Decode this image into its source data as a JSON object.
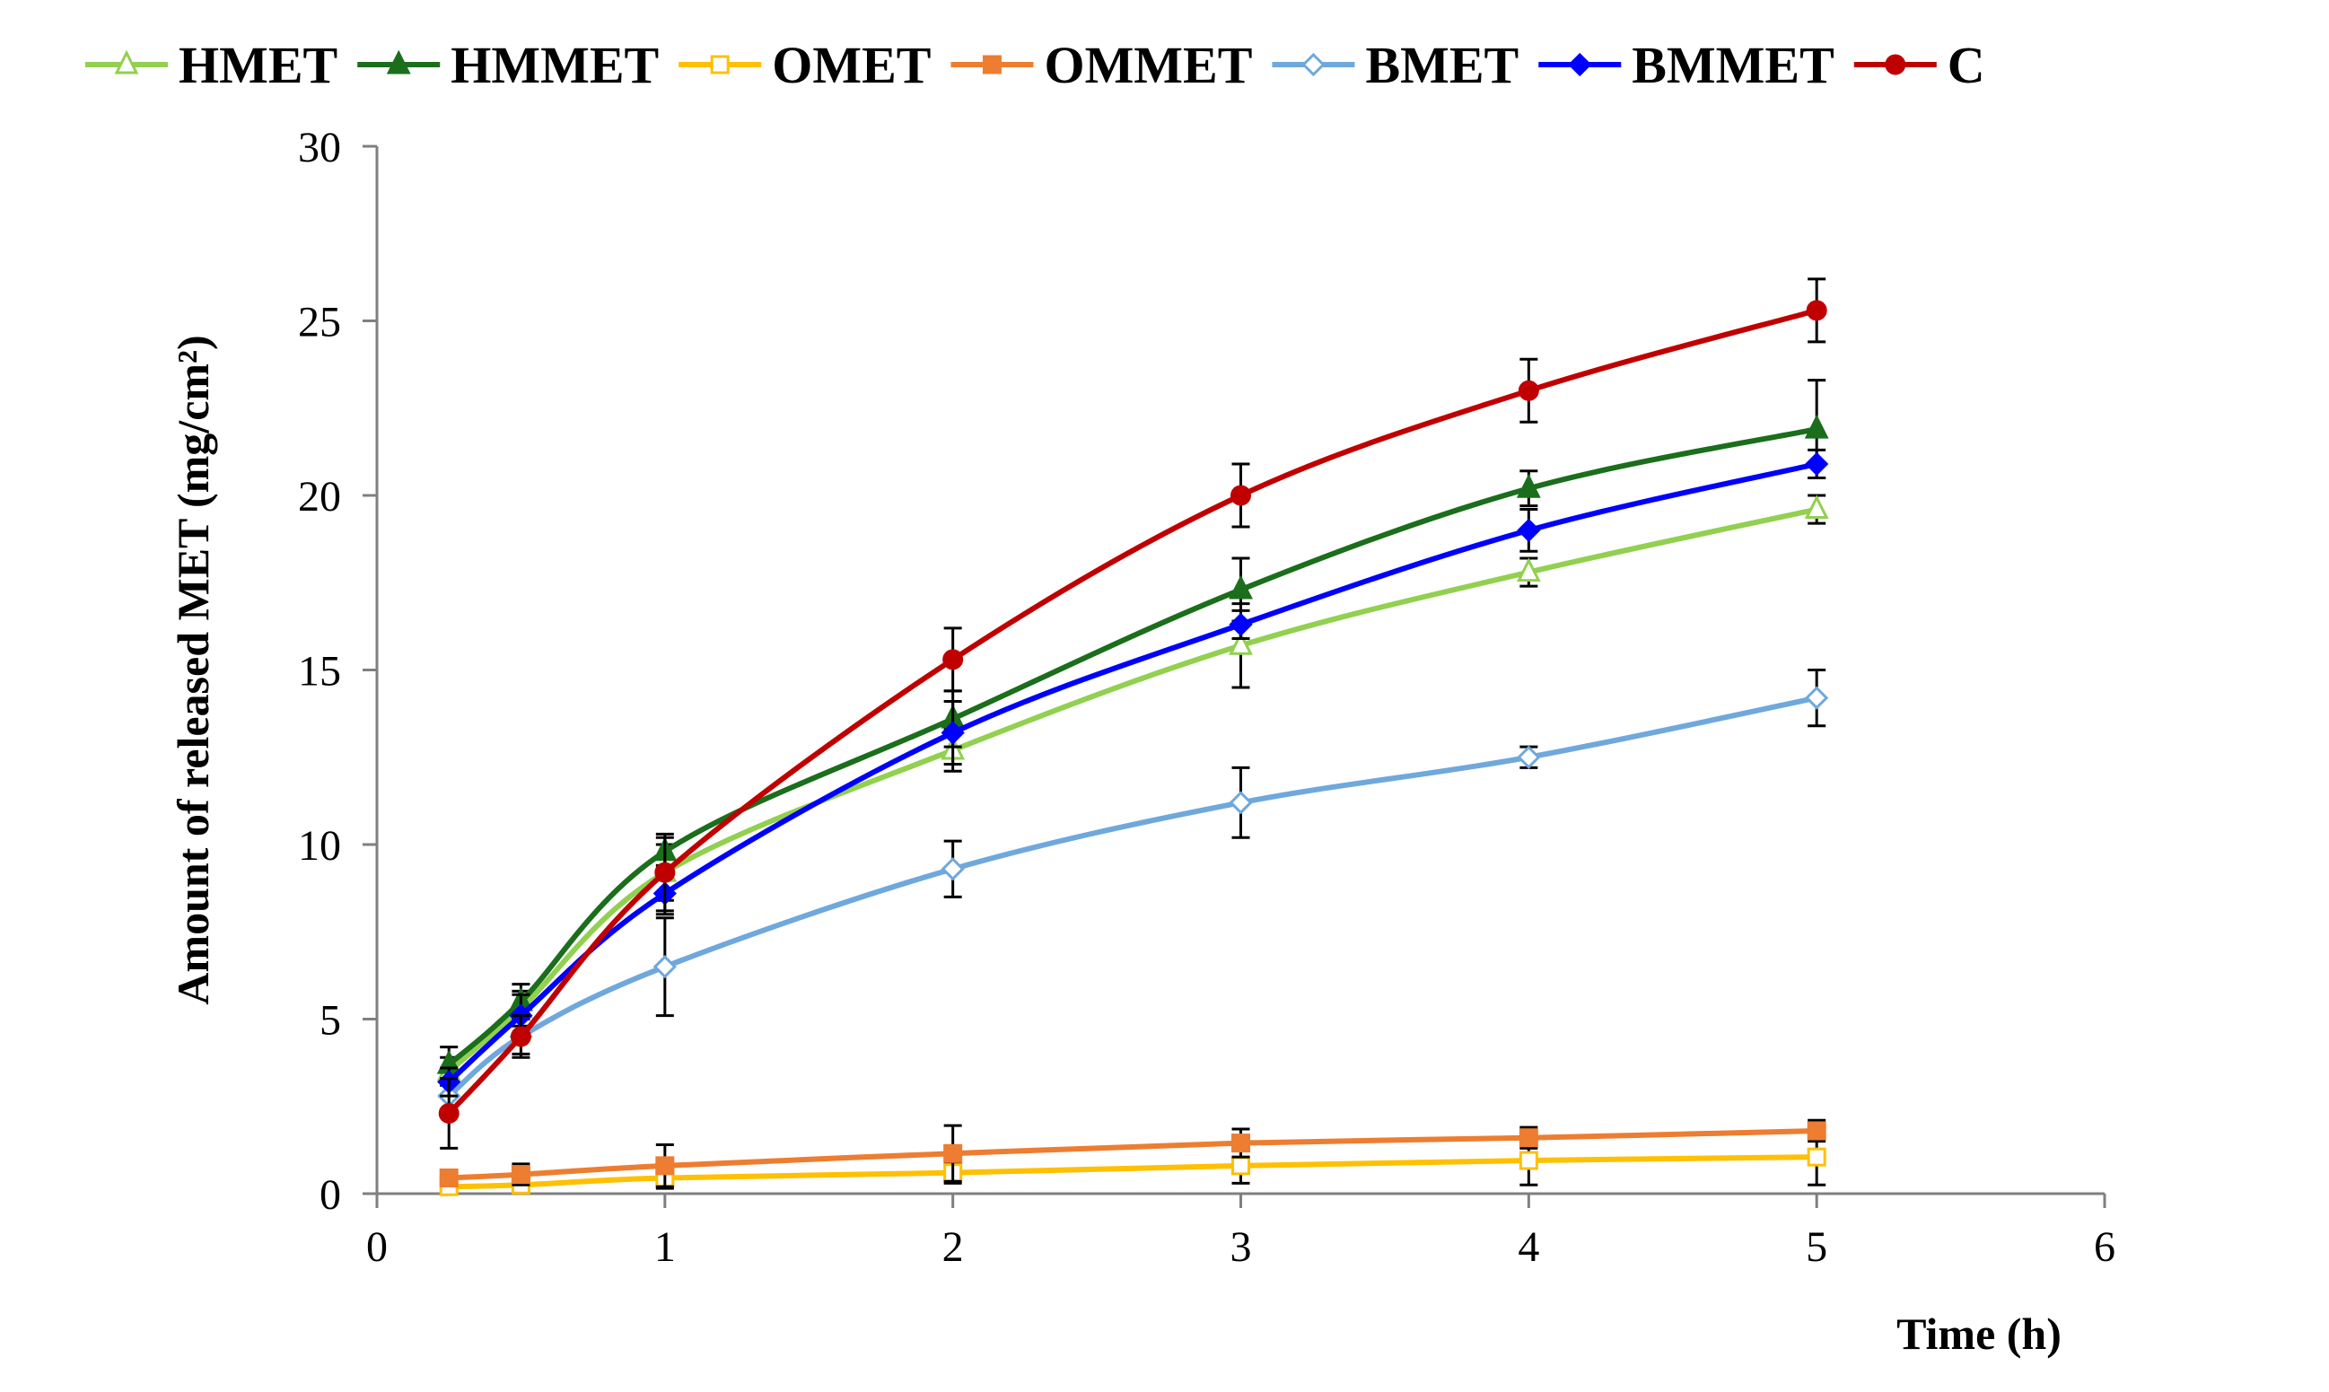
{
  "chart_data": {
    "type": "line",
    "title": "",
    "xlabel": "Time (h)",
    "ylabel": "Amount of released MET (mg/cm²)",
    "xlim": [
      0,
      6
    ],
    "ylim": [
      0,
      30
    ],
    "x_ticks": [
      "0",
      "1",
      "2",
      "3",
      "4",
      "5",
      "6"
    ],
    "y_ticks": [
      "0",
      "5",
      "10",
      "15",
      "20",
      "25",
      "30"
    ],
    "grid": false,
    "legend_position": "top",
    "x": [
      0.25,
      0.5,
      1,
      2,
      3,
      4,
      5
    ],
    "series": [
      {
        "name": "HMET",
        "color": "#92D050",
        "marker": "triangle-open",
        "values": [
          3.5,
          5.3,
          9.2,
          12.7,
          15.7,
          17.8,
          19.6
        ],
        "errors": [
          0.4,
          0.5,
          0.8,
          0.6,
          1.2,
          0.4,
          0.4
        ]
      },
      {
        "name": "HMMET",
        "color": "#1B6E1B",
        "marker": "triangle-filled",
        "values": [
          3.7,
          5.5,
          9.8,
          13.6,
          17.3,
          20.2,
          21.9
        ],
        "errors": [
          0.5,
          0.5,
          0.4,
          0.8,
          0.9,
          0.5,
          1.4
        ]
      },
      {
        "name": "OMET",
        "color": "#FFC000",
        "marker": "square-open",
        "values": [
          0.2,
          0.25,
          0.45,
          0.6,
          0.8,
          0.95,
          1.05
        ],
        "errors": [
          0.2,
          0.2,
          0.3,
          0.3,
          0.5,
          0.7,
          0.8
        ]
      },
      {
        "name": "OMMET",
        "color": "#ED7D31",
        "marker": "square-filled",
        "values": [
          0.45,
          0.55,
          0.8,
          1.15,
          1.45,
          1.6,
          1.8
        ],
        "errors": [
          0.2,
          0.3,
          0.6,
          0.8,
          0.4,
          0.3,
          0.3
        ]
      },
      {
        "name": "BMET",
        "color": "#6FA8DC",
        "marker": "diamond-open",
        "values": [
          2.8,
          4.5,
          6.5,
          9.3,
          11.2,
          12.5,
          14.2
        ],
        "errors": [
          0.4,
          0.5,
          1.4,
          0.8,
          1.0,
          0.3,
          0.8
        ]
      },
      {
        "name": "BMMET",
        "color": "#0000FF",
        "marker": "diamond-filled",
        "values": [
          3.2,
          5.1,
          8.6,
          13.2,
          16.3,
          19.0,
          20.9
        ],
        "errors": [
          0.4,
          0.6,
          0.6,
          0.9,
          0.4,
          0.6,
          0.4
        ]
      },
      {
        "name": "C",
        "color": "#C00000",
        "marker": "circle-filled",
        "values": [
          2.3,
          4.5,
          9.2,
          15.3,
          20.0,
          23.0,
          25.3
        ],
        "errors": [
          1.0,
          0.6,
          1.1,
          0.9,
          0.9,
          0.9,
          0.9
        ]
      }
    ]
  }
}
